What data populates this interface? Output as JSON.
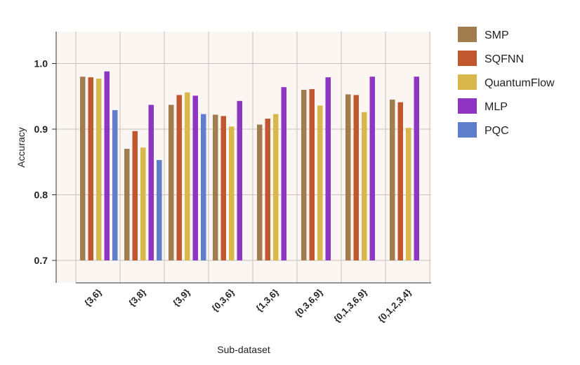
{
  "chart_data": {
    "type": "bar",
    "title": "",
    "xlabel": "Sub-dataset",
    "ylabel": "Accuracy",
    "ylim": [
      0.7,
      1.05
    ],
    "yticks": [
      "0.7",
      "0.8",
      "0.9",
      "1.0"
    ],
    "grid": true,
    "legend_position": "right",
    "categories": [
      "{3,6}",
      "{3,8}",
      "{3,9}",
      "{0,3,6}",
      "{1,3,6}",
      "{0,3,6,9}",
      "{0,1,3,6,9}",
      "{0,1,2,3,4}"
    ],
    "series": [
      {
        "name": "SMP",
        "color": "#A07C4E",
        "values": [
          0.98,
          0.87,
          0.937,
          0.922,
          0.907,
          0.96,
          0.953,
          0.945
        ]
      },
      {
        "name": "SQFNN",
        "color": "#C0572F",
        "values": [
          0.979,
          0.897,
          0.952,
          0.92,
          0.916,
          0.961,
          0.952,
          0.941
        ]
      },
      {
        "name": "QuantumFlow",
        "color": "#D8B84C",
        "values": [
          0.977,
          0.872,
          0.956,
          0.904,
          0.923,
          0.936,
          0.926,
          0.902
        ]
      },
      {
        "name": "MLP",
        "color": "#8E35C4",
        "values": [
          0.988,
          0.937,
          0.951,
          0.943,
          0.964,
          0.979,
          0.98,
          0.98
        ]
      },
      {
        "name": "PQC",
        "color": "#5F7ECB",
        "values": [
          0.929,
          0.853,
          0.923,
          null,
          null,
          null,
          null,
          null
        ]
      }
    ]
  }
}
